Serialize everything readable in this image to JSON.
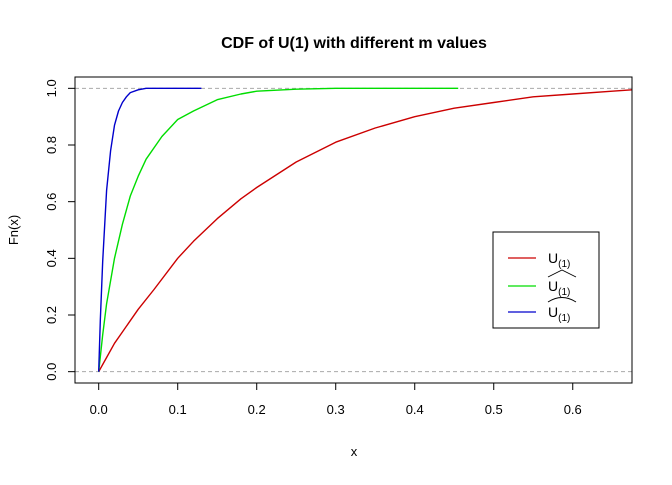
{
  "chart_data": {
    "type": "line",
    "title": "CDF of U(1) with different m values",
    "xlabel": "x",
    "ylabel": "Fn(x)",
    "xlim": [
      -0.03,
      0.675
    ],
    "ylim": [
      -0.04,
      1.04
    ],
    "xticks": [
      "0.0",
      "0.1",
      "0.2",
      "0.3",
      "0.4",
      "0.5",
      "0.6"
    ],
    "yticks": [
      "0.0",
      "0.2",
      "0.4",
      "0.6",
      "0.8",
      "1.0"
    ],
    "reference_lines": [
      0,
      1
    ],
    "legend_position": "right",
    "series": [
      {
        "name": "U(1)",
        "name_main": "U",
        "name_sub": "(1)",
        "accent": "none",
        "color": "#cc0000",
        "x": [
          0.0,
          0.01,
          0.02,
          0.03,
          0.05,
          0.07,
          0.1,
          0.12,
          0.15,
          0.18,
          0.2,
          0.25,
          0.3,
          0.35,
          0.4,
          0.45,
          0.5,
          0.55,
          0.6,
          0.65,
          0.675
        ],
        "y": [
          0.0,
          0.05,
          0.1,
          0.14,
          0.22,
          0.29,
          0.4,
          0.46,
          0.54,
          0.61,
          0.65,
          0.74,
          0.81,
          0.86,
          0.9,
          0.93,
          0.95,
          0.97,
          0.98,
          0.99,
          0.995
        ]
      },
      {
        "name": "U(1) hat",
        "name_main": "U",
        "name_sub": "(1)",
        "accent": "hat",
        "color": "#00dd00",
        "x": [
          0.0,
          0.005,
          0.01,
          0.02,
          0.03,
          0.04,
          0.05,
          0.06,
          0.08,
          0.1,
          0.12,
          0.15,
          0.18,
          0.2,
          0.25,
          0.3,
          0.35,
          0.4,
          0.455
        ],
        "y": [
          0.0,
          0.13,
          0.24,
          0.4,
          0.52,
          0.62,
          0.69,
          0.75,
          0.83,
          0.89,
          0.92,
          0.96,
          0.98,
          0.99,
          0.997,
          1.0,
          1.0,
          1.0,
          1.0
        ]
      },
      {
        "name": "U(1) tilde",
        "name_main": "U",
        "name_sub": "(1)",
        "accent": "tilde",
        "color": "#0000cc",
        "x": [
          0.0,
          0.002,
          0.005,
          0.01,
          0.015,
          0.02,
          0.025,
          0.03,
          0.035,
          0.04,
          0.05,
          0.06,
          0.08,
          0.1,
          0.13
        ],
        "y": [
          0.0,
          0.18,
          0.39,
          0.64,
          0.78,
          0.87,
          0.92,
          0.95,
          0.97,
          0.985,
          0.995,
          1.0,
          1.0,
          1.0,
          1.0
        ]
      }
    ]
  }
}
